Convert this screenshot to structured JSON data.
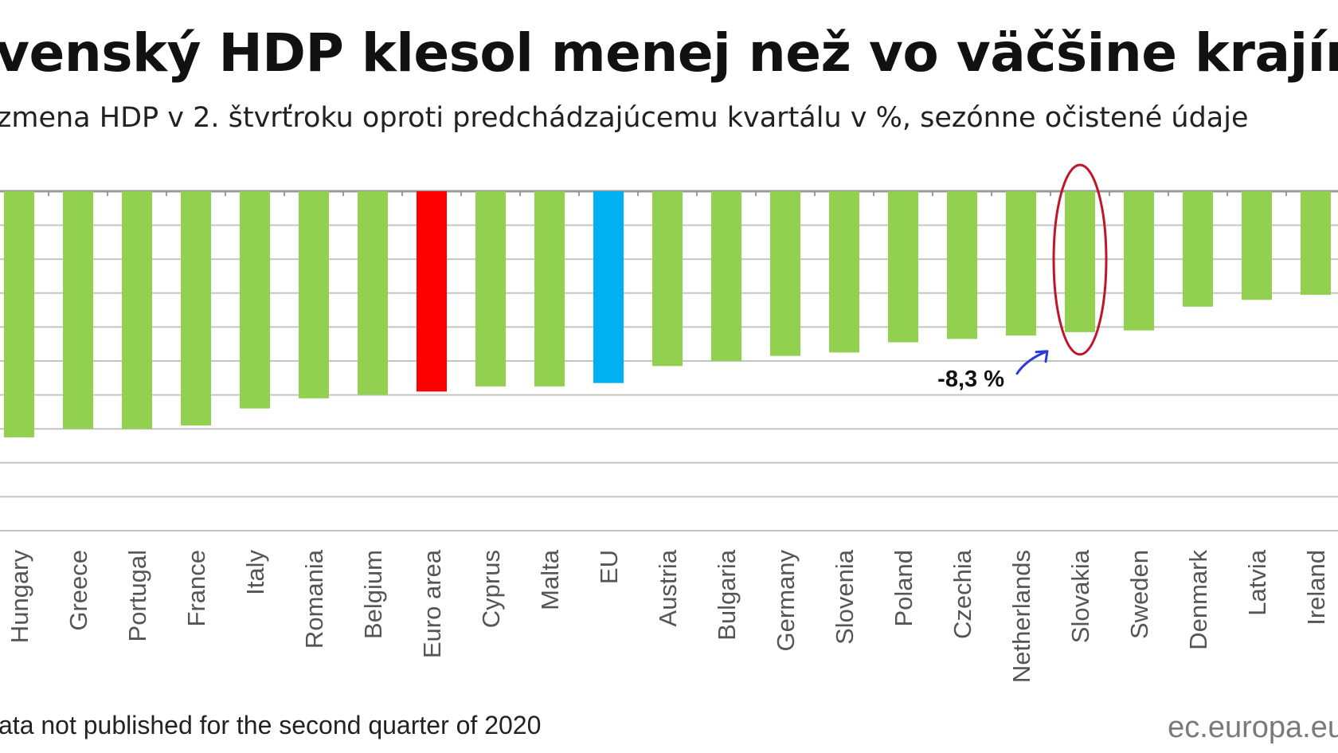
{
  "title": "venský HDP klesol menej než vo väčšine krajín",
  "subtitle": "zmena HDP v 2. štvrťroku oproti predchádzajúcemu kvartálu v %, sezónne očistené údaje",
  "footnote": "ata not published for the second quarter of 2020",
  "source": "ec.europa.eu",
  "chart_data": {
    "type": "bar",
    "categories": [
      "Hungary",
      "Greece",
      "Portugal",
      "France",
      "Italy",
      "Romania",
      "Belgium",
      "Euro area",
      "Cyprus",
      "Malta",
      "EU",
      "Austria",
      "Bulgaria",
      "Germany",
      "Slovenia",
      "Poland",
      "Czechia",
      "Netherlands",
      "Slovakia",
      "Sweden",
      "Denmark",
      "Latvia",
      "Ireland"
    ],
    "values": [
      -14.5,
      -14.0,
      -14.0,
      -13.8,
      -12.8,
      -12.2,
      -12.0,
      -11.8,
      -11.5,
      -11.5,
      -11.3,
      -10.3,
      -10.0,
      -9.7,
      -9.5,
      -8.9,
      -8.7,
      -8.5,
      -8.3,
      -8.2,
      -6.8,
      -6.4,
      -6.1
    ],
    "colors": {
      "default": "#92d050",
      "Euro area": "#ff0000",
      "EU": "#00b0f0"
    },
    "ylim": [
      -20,
      0
    ],
    "grid": true,
    "highlight": "Slovakia",
    "annotation": "-8,3 %",
    "annotation_target": "Slovakia"
  }
}
